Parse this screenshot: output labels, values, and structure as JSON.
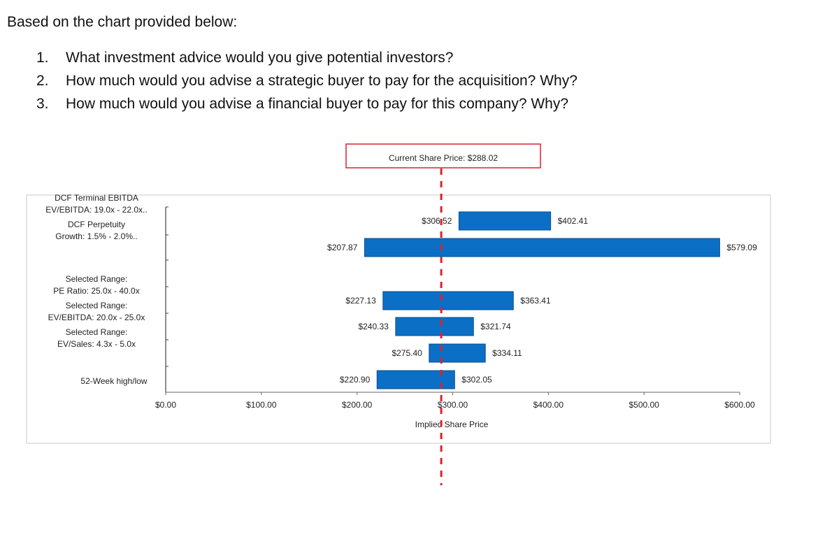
{
  "intro": "Based on the chart provided below:",
  "questions": [
    {
      "num": "1.",
      "text": "What investment advice would you give potential investors?"
    },
    {
      "num": "2.",
      "text": "How much would you advise a strategic buyer to pay for the acquisition? Why?"
    },
    {
      "num": "3.",
      "text": "How much would you advise a financial buyer to pay for this company? Why?"
    }
  ],
  "colors": {
    "bar": "#0b6fc5",
    "bar_edge": "#0a4f8f",
    "current_line": "#d9242a",
    "callout_border": "#d9242a",
    "frame": "#dcdcdc"
  },
  "chart_data": {
    "type": "bar",
    "orientation": "horizontal-range",
    "title": "Current Share Price: $288.02",
    "xlabel": "Implied Share Price",
    "ylabel": "",
    "xlim": [
      0,
      600
    ],
    "x_ticks": [
      0,
      100,
      200,
      300,
      400,
      500,
      600
    ],
    "x_tick_labels": [
      "$0.00",
      "$100.00",
      "$200.00",
      "$300.00",
      "$400.00",
      "$500.00",
      "$600.00"
    ],
    "current_price": 288.02,
    "grid": false,
    "legend": "none",
    "categories": [
      {
        "line1": "DCF Terminal EBITDA",
        "line2": "EV/EBITDA: 19.0x - 22.0x.."
      },
      {
        "line1": "DCF Perpetuity",
        "line2": "Growth: 1.5% - 2.0%.."
      },
      {
        "line1": "Selected Range:",
        "line2": "PE Ratio: 25.0x - 40.0x"
      },
      {
        "line1": "Selected Range:",
        "line2": "EV/EBITDA: 20.0x - 25.0x"
      },
      {
        "line1": "Selected Range:",
        "line2": "EV/Sales: 4.3x - 5.0x"
      },
      {
        "line1": "52-Week high/low",
        "line2": ""
      }
    ],
    "ranges": [
      {
        "low": 306.52,
        "high": 402.41,
        "low_label": "$306.52",
        "high_label": "$402.41"
      },
      {
        "low": 207.87,
        "high": 579.09,
        "low_label": "$207.87",
        "high_label": "$579.09"
      },
      {
        "low": 227.13,
        "high": 363.41,
        "low_label": "$227.13",
        "high_label": "$363.41"
      },
      {
        "low": 240.33,
        "high": 321.74,
        "low_label": "$240.33",
        "high_label": "$321.74"
      },
      {
        "low": 275.4,
        "high": 334.11,
        "low_label": "$275.40",
        "high_label": "$334.11"
      },
      {
        "low": 220.9,
        "high": 302.05,
        "low_label": "$220.90",
        "high_label": "$302.05"
      }
    ]
  }
}
